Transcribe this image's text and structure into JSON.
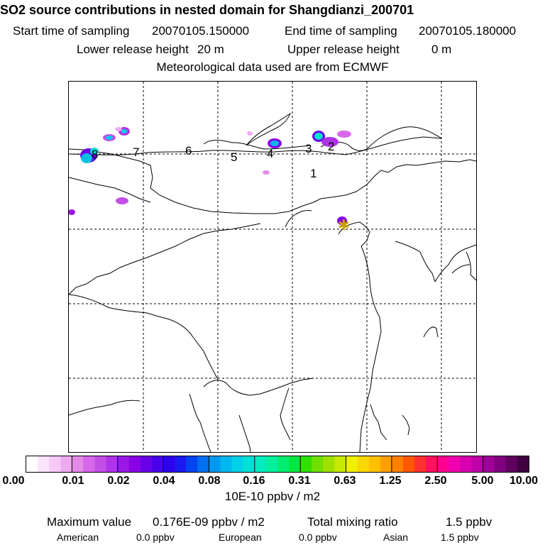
{
  "header": {
    "title": "SO2 source contributions in nested domain for Shangdianzi_200701",
    "start_label": "Start time of sampling",
    "start_value": "20070105.150000",
    "end_label": "End time of sampling",
    "end_value": "20070105.180000",
    "lower_label": "Lower release height",
    "lower_value": "20 m",
    "upper_label": "Upper release height",
    "upper_value": "0 m",
    "met": "Meteorological data used are from ECMWF"
  },
  "map": {
    "markers": [
      "1",
      "2",
      "3",
      "4",
      "5",
      "6",
      "7",
      "8"
    ],
    "station_symbol": "✱"
  },
  "colorbar": {
    "ticks": [
      "0.00",
      "0.01",
      "0.02",
      "0.04",
      "0.08",
      "0.16",
      "0.31",
      "0.63",
      "1.25",
      "2.50",
      "5.00",
      "10.00"
    ],
    "colors": [
      "#ffffff",
      "#fbe3fb",
      "#f6c9f6",
      "#efaaef",
      "#e48be8",
      "#d667e8",
      "#c44ee8",
      "#b033e8",
      "#9a17e6",
      "#8a00e6",
      "#6a00e8",
      "#4a00ea",
      "#2d00ee",
      "#1a1af0",
      "#0044f0",
      "#0070f0",
      "#0098f0",
      "#00b8f0",
      "#00d0e8",
      "#00e0d8",
      "#00ecc0",
      "#00f0a0",
      "#00ee70",
      "#00e840",
      "#30e000",
      "#70e000",
      "#a0e000",
      "#c8e800",
      "#f0f000",
      "#f8d800",
      "#ffc000",
      "#ffa000",
      "#ff8000",
      "#ff5800",
      "#ff3030",
      "#ff1060",
      "#ff0090",
      "#f000b0",
      "#d800b0",
      "#c000a8",
      "#a00098",
      "#800080",
      "#600060",
      "#400040"
    ],
    "unit": "10E-10 ppbv / m2"
  },
  "stats": {
    "max_label": "Maximum value",
    "max_value": "0.176E-09 ppbv / m2",
    "total_label": "Total mixing ratio",
    "total_value": "1.5 ppbv",
    "american_label": "American",
    "american_value": "0.0 ppbv",
    "european_label": "European",
    "european_value": "0.0 ppbv",
    "asian_label": "Asian",
    "asian_value": "1.5 ppbv"
  }
}
